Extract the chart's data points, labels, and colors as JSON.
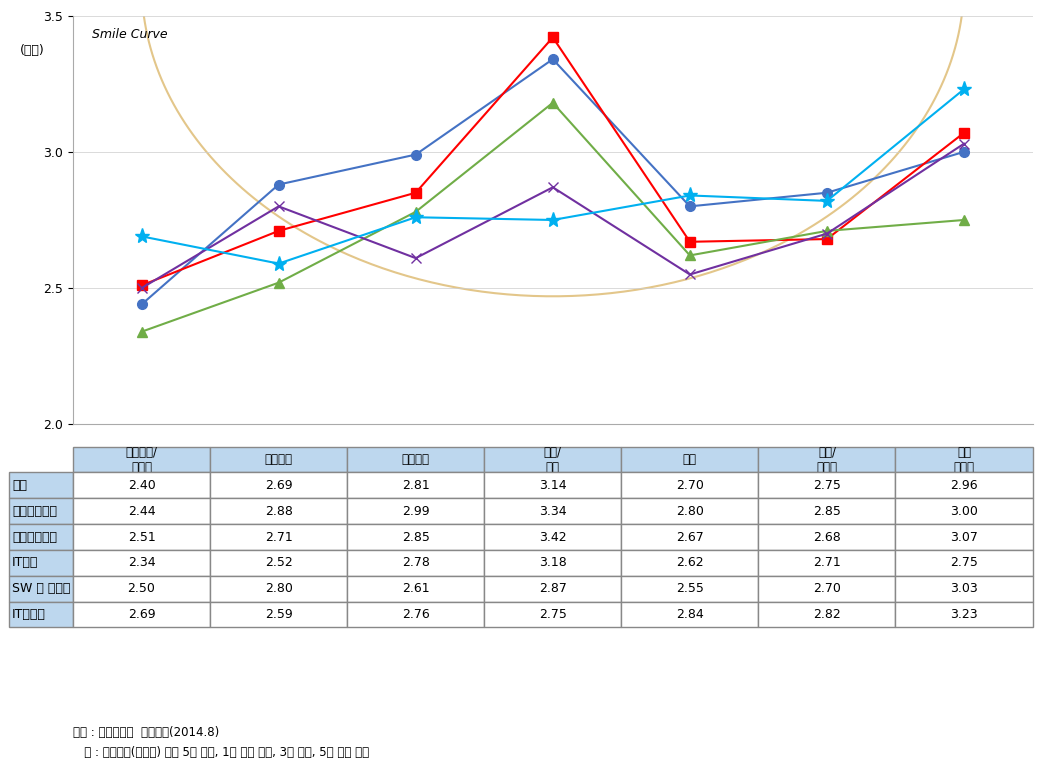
{
  "x_labels_top": [
    "상품기획/",
    "연구개발",
    "부품조달",
    "조립/생산",
    "유통",
    "판매/",
    "고객"
  ],
  "x_labels_bot": [
    "디자인",
    "",
    "",
    "",
    "",
    "마케팅",
    "서비스"
  ],
  "series": [
    {
      "name": "정보통신기기",
      "values": [
        2.44,
        2.88,
        2.99,
        3.34,
        2.8,
        2.85,
        3.0
      ],
      "color": "#4472C4",
      "marker": "o"
    },
    {
      "name": "영상음향기기",
      "values": [
        2.51,
        2.71,
        2.85,
        3.42,
        2.67,
        2.68,
        3.07
      ],
      "color": "#FF0000",
      "marker": "s"
    },
    {
      "name": "IT부품",
      "values": [
        2.34,
        2.52,
        2.78,
        3.18,
        2.62,
        2.71,
        2.75
      ],
      "color": "#70AD47",
      "marker": "^"
    },
    {
      "name": "SW 및 솔루션",
      "values": [
        2.5,
        2.8,
        2.61,
        2.87,
        2.55,
        2.7,
        3.03
      ],
      "color": "#7030A0",
      "marker": "x"
    },
    {
      "name": "IT서비스",
      "values": [
        2.69,
        2.59,
        2.76,
        2.75,
        2.84,
        2.82,
        3.23
      ],
      "color": "#00B0F0",
      "marker": "*"
    }
  ],
  "ylim": [
    2.0,
    3.5
  ],
  "yticks": [
    2.0,
    2.5,
    3.0,
    3.5
  ],
  "ylabel": "(대등)",
  "smile_curve_text": "Smile Curve",
  "table_headers": [
    "상품기획/\n디자인",
    "연구개발",
    "부품조달",
    "조립/\n생산",
    "유통",
    "판매/\n마케팅",
    "고객\n서비스"
  ],
  "table_row_labels": [
    "전체",
    "정보통신기기",
    "영상음향기기",
    "IT부품",
    "SW 및 솔루션",
    "IT서비스"
  ],
  "table_data": [
    [
      2.4,
      2.69,
      2.81,
      3.14,
      2.7,
      2.75,
      2.96
    ],
    [
      2.44,
      2.88,
      2.99,
      3.34,
      2.8,
      2.85,
      3.0
    ],
    [
      2.51,
      2.71,
      2.85,
      3.42,
      2.67,
      2.68,
      3.07
    ],
    [
      2.34,
      2.52,
      2.78,
      3.18,
      2.62,
      2.71,
      2.75
    ],
    [
      2.5,
      2.8,
      2.61,
      2.87,
      2.55,
      2.7,
      3.03
    ],
    [
      2.69,
      2.59,
      2.76,
      2.75,
      2.84,
      2.82,
      3.23
    ]
  ],
  "footnote1": "자료 : 산업연구원  설문조사(2014.8)",
  "footnote2": "   주 : 선도기업(선진국) 대비 5점 척도, 1은 매우 열위, 3은 대등, 5는 매우 우위",
  "chart_bg": "#FFFFFF",
  "table_header_bg": "#BDD7EE",
  "table_cell_bg": "#FFFFFF",
  "smile_color": "#D4A84B",
  "border_color": "#888888"
}
